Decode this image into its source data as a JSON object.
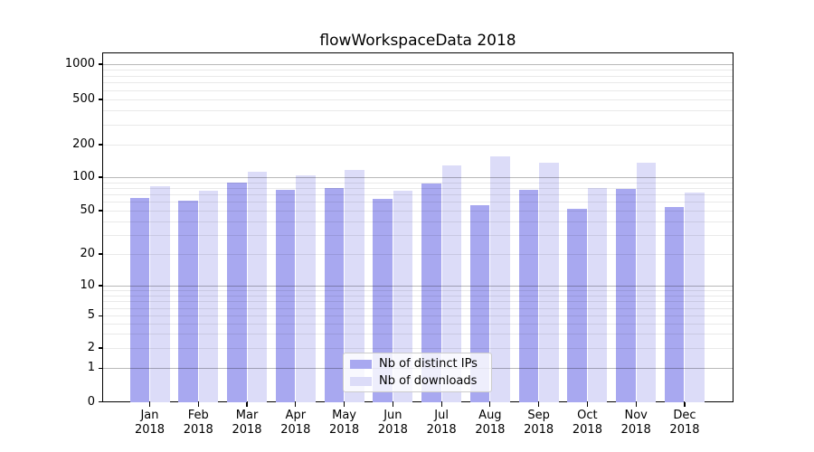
{
  "title": "flowWorkspaceData 2018",
  "chart_data": {
    "type": "bar",
    "title": "flowWorkspaceData 2018",
    "categories": [
      "Jan 2018",
      "Feb 2018",
      "Mar 2018",
      "Apr 2018",
      "May 2018",
      "Jun 2018",
      "Jul 2018",
      "Aug 2018",
      "Sep 2018",
      "Oct 2018",
      "Nov 2018",
      "Dec 2018"
    ],
    "series": [
      {
        "key": "ips",
        "name": "Nb of distinct IPs",
        "color": "#a8a8f0",
        "values": [
          65,
          61,
          90,
          77,
          80,
          64,
          88,
          56,
          77,
          52,
          78,
          54
        ]
      },
      {
        "key": "downloads",
        "name": "Nb of downloads",
        "color": "#dcdcf8",
        "values": [
          83,
          75,
          112,
          104,
          117,
          76,
          128,
          155,
          136,
          80,
          135,
          73
        ]
      }
    ],
    "yticks": [
      0,
      1,
      2,
      5,
      10,
      20,
      50,
      100,
      200,
      500,
      1000
    ],
    "yscale": "symlog",
    "ylim": [
      0,
      1200
    ],
    "xlabel": "",
    "ylabel": "",
    "grid": "both",
    "legend_position": "lower center"
  },
  "legend": {
    "items": [
      {
        "label": "Nb of distinct IPs",
        "color": "#a8a8f0"
      },
      {
        "label": "Nb of downloads",
        "color": "#dcdcf8"
      }
    ]
  },
  "colors": {
    "bar_ips": "#a8a8f0",
    "bar_downloads": "#dcdcf8",
    "spine": "#000000",
    "legend_border": "#cccccc"
  }
}
